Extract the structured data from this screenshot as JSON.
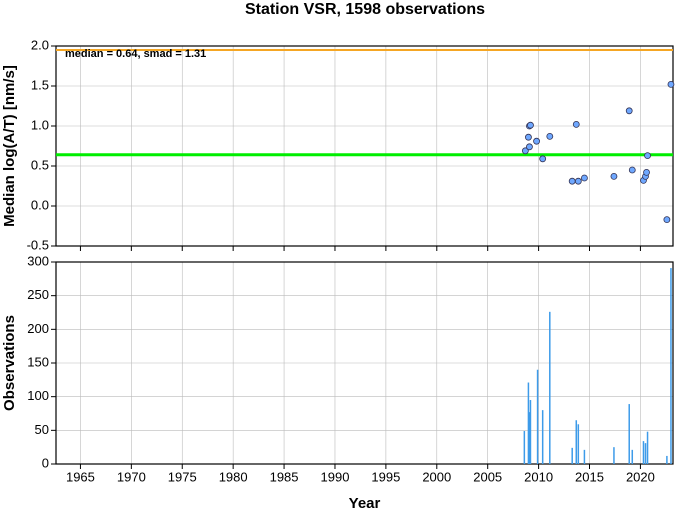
{
  "chart_data": [
    {
      "type": "scatter",
      "title": "Station VSR, 1598 observations",
      "ylabel": "Median log(A/T) [nm/s]",
      "annotation": "median = 0.64, smad = 1.31",
      "x": [
        2008.7,
        2009.0,
        2009.1,
        2009.2,
        2009.1,
        2009.8,
        2010.4,
        2011.1,
        2013.3,
        2013.7,
        2013.9,
        2014.5,
        2017.4,
        2018.9,
        2019.2,
        2020.3,
        2020.5,
        2020.6,
        2020.7,
        2022.6,
        2023.0
      ],
      "values": [
        0.69,
        0.86,
        1.0,
        1.01,
        0.74,
        0.81,
        0.59,
        0.87,
        0.31,
        1.02,
        0.31,
        0.35,
        0.37,
        1.19,
        0.45,
        0.32,
        0.37,
        0.42,
        0.63,
        -0.17,
        1.52
      ],
      "color": "#6fa8ff",
      "lines": [
        {
          "value": 1.95,
          "color": "#f5a623"
        },
        {
          "value": 0.64,
          "color": "#00ee00"
        }
      ],
      "xlim": [
        1962.6,
        2023.2
      ],
      "xticks": [
        1965,
        1970,
        1975,
        1980,
        1985,
        1990,
        1995,
        2000,
        2005,
        2010,
        2015,
        2020
      ],
      "ylim": [
        -0.5,
        2.0
      ],
      "yticks": [
        -0.5,
        {
          "value": 0,
          "label": "0.0"
        },
        0.5,
        {
          "value": 1,
          "label": "1.0"
        },
        1.5,
        {
          "value": 2,
          "label": "2.0"
        }
      ],
      "grid": true
    },
    {
      "type": "bar",
      "ylabel": "Observations",
      "xlabel": "Year",
      "x": [
        2008.6,
        2009.0,
        2009.1,
        2009.2,
        2009.9,
        2010.4,
        2011.1,
        2013.3,
        2013.7,
        2013.9,
        2014.5,
        2017.4,
        2018.9,
        2019.2,
        2020.3,
        2020.5,
        2020.7,
        2022.6,
        2023.0
      ],
      "values": [
        49,
        121,
        77,
        95,
        140,
        80,
        226,
        24,
        65,
        59,
        21,
        25,
        89,
        21,
        34,
        31,
        48,
        12,
        291
      ],
      "color": "#3d9be9",
      "xlim": [
        1962.6,
        2023.2
      ],
      "xticks": [
        1965,
        1970,
        1975,
        1980,
        1985,
        1990,
        1995,
        2000,
        2005,
        2010,
        2015,
        2020
      ],
      "ylim": [
        0,
        300
      ],
      "yticks": [
        0,
        50,
        100,
        150,
        200,
        250,
        300
      ],
      "grid": true
    }
  ]
}
